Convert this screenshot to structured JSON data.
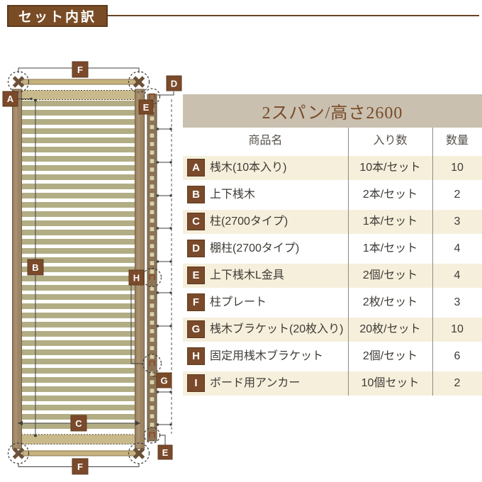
{
  "header": {
    "title": "セット内訳"
  },
  "table": {
    "title": "2スパン/高さ2600",
    "columns": {
      "name": "商品名",
      "per_pack": "入り数",
      "qty": "数量"
    },
    "rows": [
      {
        "key": "A",
        "name": "桟木(10本入り)",
        "per_pack": "10本/セット",
        "qty": "10"
      },
      {
        "key": "B",
        "name": "上下桟木",
        "per_pack": "2本/セット",
        "qty": "2"
      },
      {
        "key": "C",
        "name": "柱(2700タイプ)",
        "per_pack": "1本/セット",
        "qty": "3"
      },
      {
        "key": "D",
        "name": "棚柱(2700タイプ)",
        "per_pack": "1本/セット",
        "qty": "4"
      },
      {
        "key": "E",
        "name": "上下桟木L金具",
        "per_pack": "2個/セット",
        "qty": "4"
      },
      {
        "key": "F",
        "name": "柱プレート",
        "per_pack": "2枚/セット",
        "qty": "3"
      },
      {
        "key": "G",
        "name": "桟木ブラケット(20枚入り)",
        "per_pack": "20枚/セット",
        "qty": "10"
      },
      {
        "key": "H",
        "name": "固定用桟木ブラケット",
        "per_pack": "2個/セット",
        "qty": "6"
      },
      {
        "key": "I",
        "name": "ボード用アンカー",
        "per_pack": "10個セット",
        "qty": "2"
      }
    ]
  },
  "diagram": {
    "letters": {
      "slat": "A",
      "rail": "B",
      "post": "C",
      "shelf_post": "D",
      "l_bracket_top": "E",
      "l_bracket_bottom": "E",
      "plate_top": "F",
      "plate_bottom": "F",
      "slat_bracket": "G",
      "fixing_bracket": "H"
    }
  },
  "colors": {
    "accent": "#7a4a2b",
    "accent_dark": "#5d3a1c",
    "header_box": "#7a4c26",
    "title_bg": "#c9c0b0",
    "title_text": "#7a4a28",
    "cream": "#f5efdc",
    "slat": "#b2ad84",
    "post": "#9c8465",
    "post_edge": "#6f5c45",
    "rail": "#c9ba8c",
    "bar": "#c6b27e",
    "strip": "#8d7454",
    "strip_square": "#d9d0ab",
    "plate": "#6b5138",
    "line": "#3f3f3f",
    "divider": "#8f8b85",
    "text": "#3f3b36"
  }
}
